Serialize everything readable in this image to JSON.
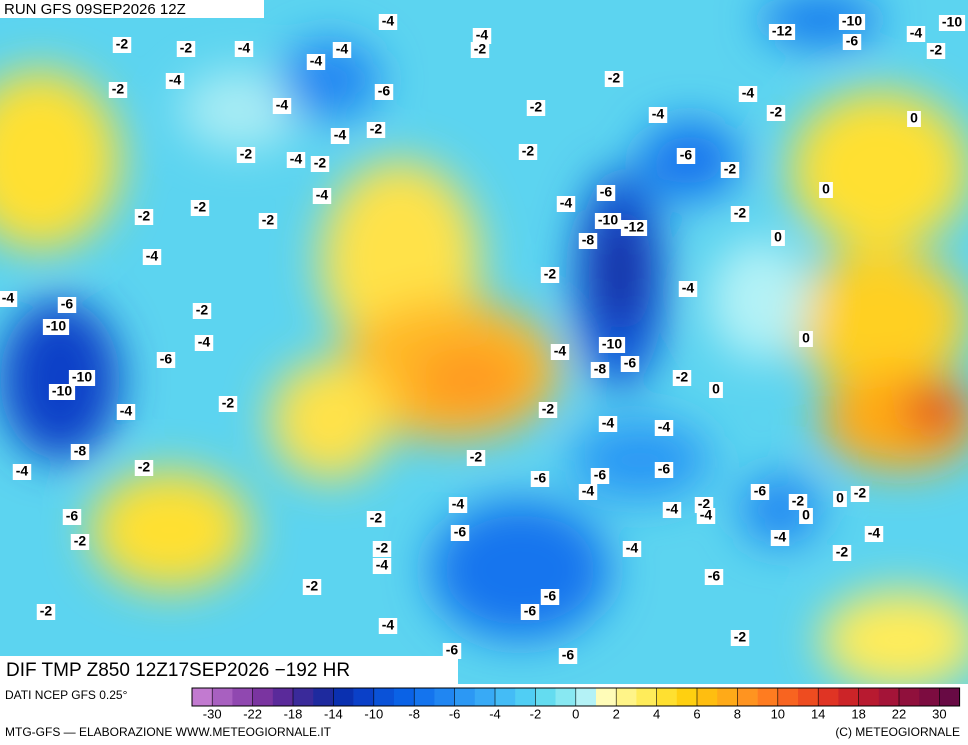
{
  "header": {
    "title": "RUN GFS 09SEP2026 12Z"
  },
  "map": {
    "title": "DIF TMP Z850 12Z17SEP2026 −192 HR",
    "labels": [
      -4,
      -2,
      -2,
      -4,
      -4,
      -4,
      -4,
      -2,
      -2,
      -12,
      -10,
      -6,
      -4,
      -2,
      -10,
      -4,
      -2,
      -6,
      -4,
      -2,
      -4,
      -4,
      -2,
      0,
      -2,
      -4,
      -2,
      -4,
      -2,
      -2,
      -6,
      -2,
      0,
      -4,
      -6,
      -2,
      -2,
      -2,
      -4,
      -2,
      -10,
      -12,
      -8,
      0,
      -4,
      -2,
      -4,
      -6,
      -2,
      -4,
      -10,
      -4,
      0,
      -4,
      -10,
      -6,
      -8,
      -6,
      -10,
      -10,
      -2,
      0,
      -2,
      -4,
      -2,
      -4,
      -4,
      -8,
      -4,
      -2,
      -2,
      -6,
      -6,
      -6,
      -4,
      -6,
      -2,
      0,
      0,
      -2,
      -4,
      -4,
      -2,
      -4,
      -6,
      -2,
      -6,
      -2,
      -4,
      -4,
      -2,
      -4,
      -2,
      -4,
      -6,
      -2,
      -6,
      -2,
      -6,
      -4,
      -2,
      -6,
      -6
    ]
  },
  "legend": {
    "source": "DATI NCEP GFS 0.25°",
    "colors": [
      "#c27ad0",
      "#a860c0",
      "#9048b0",
      "#7a34a0",
      "#5a2a9a",
      "#3a2a9a",
      "#1e2a9e",
      "#0a30b0",
      "#0a40c8",
      "#0a52d8",
      "#0a62e6",
      "#1474ee",
      "#2086f2",
      "#2c98f4",
      "#38aaf6",
      "#44bcf6",
      "#50cef4",
      "#64dcf0",
      "#88e8f2",
      "#b4f2f6",
      "#fffcb8",
      "#fff488",
      "#ffec5a",
      "#ffe030",
      "#ffd010",
      "#ffbe10",
      "#ffaa18",
      "#ff9420",
      "#ff7c20",
      "#f86420",
      "#ee4c20",
      "#e03424",
      "#cc2428",
      "#b81a30",
      "#a41438",
      "#90103c",
      "#7c0c40",
      "#680a44"
    ],
    "ticks": [
      -30,
      -22,
      -18,
      -14,
      -10,
      -8,
      -6,
      -4,
      -2,
      0,
      2,
      4,
      6,
      8,
      10,
      14,
      18,
      22,
      30
    ]
  },
  "footer": {
    "left": "MTG-GFS — ELABORAZIONE WWW.METEOGIORNALE.IT",
    "right": "(C) METEOGIORNALE"
  }
}
